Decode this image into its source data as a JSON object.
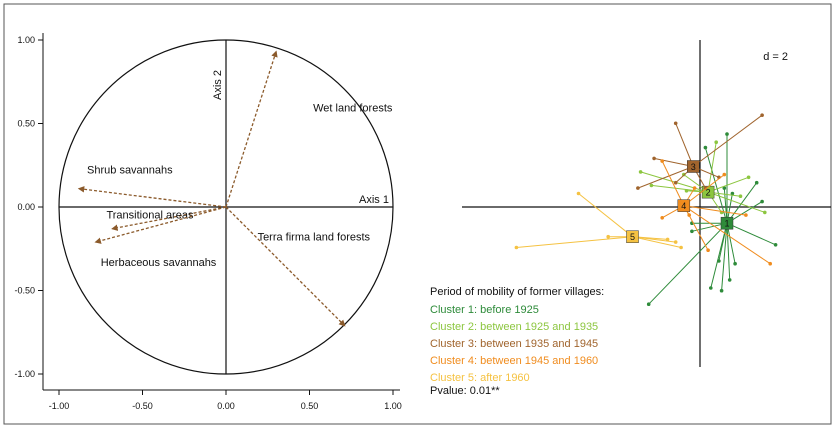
{
  "chart_data": [
    {
      "type": "scatter",
      "subtype": "correlation-circle",
      "title": "",
      "xlabel": "Axis 1",
      "ylabel": "Axis 2",
      "xlim": [
        -1.0,
        1.0
      ],
      "ylim": [
        -1.0,
        1.0
      ],
      "x_ticks": [
        "-1.00",
        "-0.50",
        "0.00",
        "0.50",
        "1.00"
      ],
      "y_ticks": [
        "1.00",
        "0.50",
        "0.00",
        "-0.50",
        "-1.00"
      ],
      "arrow_color": "#8B5A2B",
      "variables": [
        {
          "name": "Wet land forests",
          "x": 0.3,
          "y": 0.93
        },
        {
          "name": "Shrub savannahs",
          "x": -0.88,
          "y": 0.11
        },
        {
          "name": "Transitional areas",
          "x": -0.68,
          "y": -0.13
        },
        {
          "name": "Herbaceous savannahs",
          "x": -0.78,
          "y": -0.21
        },
        {
          "name": "Terra firma land forests",
          "x": 0.71,
          "y": -0.71
        }
      ]
    },
    {
      "type": "scatter",
      "subtype": "cluster-star-plot",
      "scale_label": "d = 2",
      "legend_title": "Period of mobility of former villages:",
      "pvalue_label": "Pvalue: 0.01**",
      "clusters": [
        {
          "id": "1",
          "name": "Cluster 1: before 1925",
          "color": "#2E8B3A",
          "center": [
            1.0,
            -0.6
          ],
          "points": [
            [
              0.2,
              2.2
            ],
            [
              0.9,
              0.7
            ],
            [
              1.2,
              0.5
            ],
            [
              2.1,
              0.9
            ],
            [
              2.3,
              0.2
            ],
            [
              2.8,
              -1.4
            ],
            [
              -0.3,
              -0.9
            ],
            [
              0.7,
              -2.0
            ],
            [
              1.1,
              -2.7
            ],
            [
              0.8,
              -3.1
            ],
            [
              0.4,
              -3.0
            ],
            [
              -1.9,
              -3.6
            ],
            [
              1.3,
              -2.1
            ],
            [
              1.0,
              2.7
            ],
            [
              -0.3,
              -0.6
            ]
          ]
        },
        {
          "id": "2",
          "name": "Cluster 2: between 1925 and 1935",
          "color": "#8CC63F",
          "center": [
            0.3,
            0.55
          ],
          "points": [
            [
              -2.2,
              1.3
            ],
            [
              -1.8,
              0.8
            ],
            [
              -0.6,
              1.2
            ],
            [
              1.8,
              1.1
            ],
            [
              2.4,
              -0.2
            ],
            [
              1.5,
              0.4
            ],
            [
              0.6,
              2.4
            ],
            [
              -0.5,
              0.6
            ],
            [
              0.8,
              -0.2
            ]
          ]
        },
        {
          "id": "3",
          "name": "Cluster 3: between 1935 and 1945",
          "color": "#A0642D",
          "center": [
            -0.25,
            1.5
          ],
          "points": [
            [
              -0.9,
              3.1
            ],
            [
              2.3,
              3.4
            ],
            [
              -2.3,
              0.7
            ],
            [
              -1.7,
              1.8
            ],
            [
              0.7,
              1.1
            ],
            [
              -0.9,
              0.9
            ],
            [
              0.2,
              0.7
            ]
          ]
        },
        {
          "id": "4",
          "name": "Cluster 4: between 1945 and 1960",
          "color": "#F08C1E",
          "center": [
            -0.6,
            0.05
          ],
          "points": [
            [
              -1.4,
              1.7
            ],
            [
              -0.2,
              0.7
            ],
            [
              0.9,
              1.2
            ],
            [
              1.7,
              -0.3
            ],
            [
              0.3,
              -1.6
            ],
            [
              2.6,
              -2.1
            ],
            [
              -1.4,
              -0.4
            ],
            [
              -0.4,
              -0.3
            ]
          ]
        },
        {
          "id": "5",
          "name": "Cluster 5: after 1960",
          "color": "#F5C242",
          "center": [
            -2.5,
            -1.1
          ],
          "points": [
            [
              -4.5,
              0.5
            ],
            [
              -6.8,
              -1.5
            ],
            [
              -2.6,
              -1.1
            ],
            [
              -1.2,
              -1.2
            ],
            [
              -0.9,
              -1.3
            ],
            [
              -0.7,
              -1.5
            ],
            [
              -3.4,
              -1.1
            ]
          ]
        }
      ]
    }
  ]
}
